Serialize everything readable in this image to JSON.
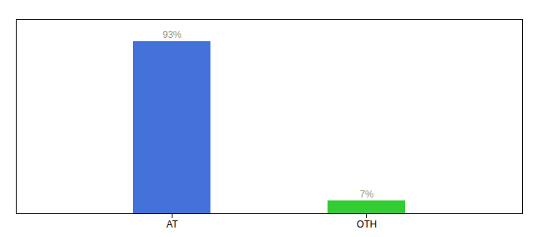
{
  "chart_data": {
    "type": "bar",
    "categories": [
      "AT",
      "OTH"
    ],
    "values": [
      93,
      7
    ],
    "colors": [
      "#4472db",
      "#33cc33"
    ],
    "value_labels": [
      "93%",
      "7%"
    ],
    "data_labels": true,
    "ylim": [
      0,
      105
    ],
    "tick_labels": "x",
    "grid": false
  }
}
